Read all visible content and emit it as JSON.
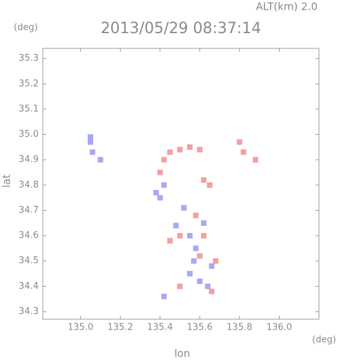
{
  "chart_data": {
    "type": "scatter",
    "title": "2013/05/29 08:37:14",
    "subtitle": "ALT(km) 2.0",
    "x_label": "lon",
    "y_label": "lat",
    "x_unit": "(deg)",
    "y_unit": "(deg)",
    "xlim": [
      134.81,
      136.2
    ],
    "ylim": [
      34.27,
      35.34
    ],
    "xticks": [
      {
        "value": 135,
        "label": "135.0"
      },
      135.2,
      135.4,
      135.6,
      135.8,
      {
        "value": 136,
        "label": "136.0"
      }
    ],
    "yticks": [
      35.3,
      35.2,
      35.1,
      {
        "value": 35,
        "label": "35.0"
      },
      34.9,
      34.8,
      34.7,
      34.6,
      34.5,
      34.4,
      34.3
    ],
    "grid": false,
    "series": [
      {
        "color": "#9a9af0",
        "x": [
          135.05,
          135.06,
          135.05,
          135.1,
          135.38,
          135.4,
          135.42,
          135.52,
          135.55,
          135.58,
          135.57,
          135.6,
          135.62,
          135.55,
          135.48,
          135.66,
          135.64,
          135.42
        ],
        "values": [
          34.97,
          34.93,
          34.99,
          34.9,
          34.77,
          34.75,
          34.8,
          34.71,
          34.6,
          34.55,
          34.5,
          34.42,
          34.65,
          34.45,
          34.64,
          34.48,
          34.4,
          34.36
        ]
      },
      {
        "color": "#f09090",
        "x": [
          135.42,
          135.45,
          135.5,
          135.55,
          135.6,
          135.4,
          135.62,
          135.65,
          135.8,
          135.82,
          135.88,
          135.5,
          135.45,
          135.6,
          135.68,
          135.66,
          135.58,
          135.62,
          135.5
        ],
        "values": [
          34.9,
          34.93,
          34.94,
          34.95,
          34.94,
          34.85,
          34.82,
          34.8,
          34.97,
          34.93,
          34.9,
          34.6,
          34.58,
          34.52,
          34.5,
          34.38,
          34.68,
          34.6,
          34.4
        ]
      }
    ]
  }
}
